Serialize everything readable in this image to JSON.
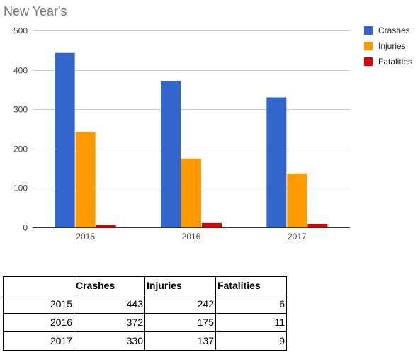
{
  "chart_data": {
    "type": "bar",
    "title": "New Year's",
    "xlabel": "",
    "ylabel": "",
    "categories": [
      "2015",
      "2016",
      "2017"
    ],
    "series": [
      {
        "name": "Crashes",
        "values": [
          443,
          372,
          330
        ],
        "color": "#3366cc"
      },
      {
        "name": "Injuries",
        "values": [
          242,
          175,
          137
        ],
        "color": "#ff9900"
      },
      {
        "name": "Fatalities",
        "values": [
          6,
          11,
          9
        ],
        "color": "#dc0000"
      }
    ],
    "ylim": [
      0,
      500
    ],
    "yticks": [
      "0",
      "100",
      "200",
      "300",
      "400",
      "500"
    ],
    "grid": true,
    "legend_position": "right"
  },
  "table": {
    "headers": [
      "",
      "Crashes",
      "Injuries",
      "Fatalities"
    ],
    "rows": [
      [
        "2015",
        "443",
        "242",
        "6"
      ],
      [
        "2016",
        "372",
        "175",
        "11"
      ],
      [
        "2017",
        "330",
        "137",
        "9"
      ]
    ]
  }
}
